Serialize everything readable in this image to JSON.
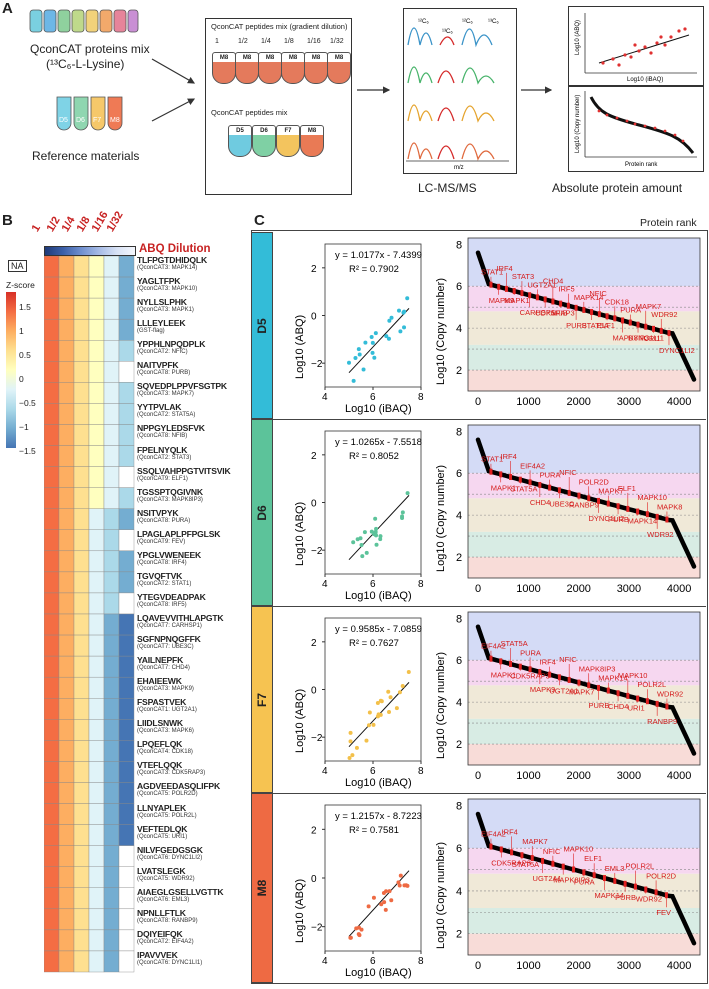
{
  "panelA": {
    "letter": "A",
    "qconcat_label": "QconCAT proteins mix",
    "qconcat_sublabel": "(¹³C₆-L-Lysine)",
    "reference_label": "Reference materials",
    "ref_tubes": [
      "D5",
      "D6",
      "F7",
      "M8"
    ],
    "gradient_title": "QconCAT peptides mix (gradient dilution)",
    "dilutions": [
      "1",
      "1/2",
      "1/4",
      "1/8",
      "1/16",
      "1/32"
    ],
    "tube_label": "M8",
    "mix_title": "QconCAT peptides mix",
    "ms_labels": [
      "¹²C₆",
      "¹³C₆"
    ],
    "mz_label": "m/z",
    "lcms_label": "LC-MS/MS",
    "abq_axis": "Log10 (ABQ)",
    "ibaq_axis": "Log10 (iBAQ)",
    "copy_axis": "Log10 (Copy number)",
    "rank_axis": "Protein rank",
    "absolute_label": "Absolute protein amount"
  },
  "panelB": {
    "letter": "B",
    "dilutions": [
      "1",
      "1/2",
      "1/4",
      "1/8",
      "1/16",
      "1/32"
    ],
    "abq_dilution": "ABQ Dilution",
    "na": "NA",
    "zscore_title": "Z-score",
    "zscore_ticks": [
      "1.5",
      "1",
      "0.5",
      "0",
      "−0.5",
      "−1",
      "−1.5"
    ],
    "rows": [
      {
        "pep": "TLFPGTDHIDQLK",
        "src": "(QconCAT3: MAPK14)"
      },
      {
        "pep": "YAGLTFPK",
        "src": "(QconCAT3: MAPK10)"
      },
      {
        "pep": "NYLLSLPHK",
        "src": "(QconCAT3: MAPK1)"
      },
      {
        "pep": "LLLEYLEEK",
        "src": "(GST-flag)"
      },
      {
        "pep": "YPPHLNPQDPLK",
        "src": "(QconCAT2: NFIC)"
      },
      {
        "pep": "NAITVPFK",
        "src": "(QconCAT8: PURB)"
      },
      {
        "pep": "SQVEDPLPPVFSGTPK",
        "src": "(QconCAT3: MAPK7)"
      },
      {
        "pep": "YYTPVLAK",
        "src": "(QconCAT2: STAT5A)"
      },
      {
        "pep": "NPPGYLEDSFVK",
        "src": "(QconCAT8: NFIB)"
      },
      {
        "pep": "FPELNYQLK",
        "src": "(QconCAT2: STAT3)"
      },
      {
        "pep": "SSQLVAHPPGTVITSVIK",
        "src": "(QconCAT9: ELF1)"
      },
      {
        "pep": "TGSSPTQGIVNK",
        "src": "(QconCAT3: MAPK8IP3)"
      },
      {
        "pep": "NSITVPYK",
        "src": "(QconCAT8: PURA)"
      },
      {
        "pep": "LPAGLAPLPFPGLSK",
        "src": "(QconCAT9: FEV)"
      },
      {
        "pep": "YPGLVWENEEK",
        "src": "(QconCAT8: IRF4)"
      },
      {
        "pep": "TGVQFTVK",
        "src": "(QconCAT2: STAT1)"
      },
      {
        "pep": "YTEGVDEADPAK",
        "src": "(QconCAT8: IRF5)"
      },
      {
        "pep": "LQAVEVVITHLAPGTK",
        "src": "(QconCAT7: CARHSP1)"
      },
      {
        "pep": "SGFNPNQGFFK",
        "src": "(QconCAT7: UBE3C)"
      },
      {
        "pep": "YAILNEPFK",
        "src": "(QconCAT7: CHD4)"
      },
      {
        "pep": "EHAIEEWK",
        "src": "(QconCAT3: MAPK9)"
      },
      {
        "pep": "FSPASTVEK",
        "src": "(QconCAT1: UGT2A1)"
      },
      {
        "pep": "LIIDLSNWK",
        "src": "(QconCAT3: MAPK6)"
      },
      {
        "pep": "LPQEFLQK",
        "src": "(QconCAT4: CDK18)"
      },
      {
        "pep": "VTEFLQQK",
        "src": "(QconCAT3: CDK5RAP3)"
      },
      {
        "pep": "AGDVEEDASQLIFPK",
        "src": "(QconCAT5: POLR2D)"
      },
      {
        "pep": "LLNYAPLEK",
        "src": "(QconCAT5: POLR2L)"
      },
      {
        "pep": "VEFTEDLQK",
        "src": "(QconCAT5: URI1)"
      },
      {
        "pep": "NILVFGEDGSGK",
        "src": "(QconCAT6: DYNC1LI2)"
      },
      {
        "pep": "LVATSLEGK",
        "src": "(QconCAT5: WDR92)"
      },
      {
        "pep": "AIAEGLGSELLVGTTK",
        "src": "(QconCAT6: EML3)"
      },
      {
        "pep": "NPNLLFTLK",
        "src": "(QconCAT8: RANBP9)"
      },
      {
        "pep": "DQIYEIFQK",
        "src": "(QconCAT2: EIF4A2)"
      },
      {
        "pep": "IPAVVVEK",
        "src": "(QconCAT6: DYNC1LI1)"
      }
    ]
  },
  "panelC": {
    "letter": "C",
    "protein_rank": "Protein rank",
    "xaxis_scatter": "Log10 (iBAQ)",
    "yaxis_scatter": "Log10 (ABQ)",
    "yaxis_rank": "Log10 (Copy number)",
    "scatter_xticks": [
      "4",
      "6",
      "8"
    ],
    "scatter_yticks": [
      "2",
      "0",
      "−2"
    ],
    "rank_yticks": [
      "8",
      "6",
      "4",
      "2"
    ],
    "rank_xticks": [
      "0",
      "1000",
      "2000",
      "3000",
      "4000"
    ],
    "samples": [
      {
        "name": "D5",
        "color": "#33bcd8",
        "dot": "#33bcd8",
        "eq": "y = 1.0177x - 7.4399",
        "r2": "R² = 0.7902",
        "labels": [
          "STAT1",
          "MAPK9",
          "IRF4",
          "MAPK1",
          "STAT3",
          "CARHSP1",
          "UGT2A1",
          "CDK5RAP3",
          "CHD4",
          "NFIB",
          "IRF5",
          "PURB",
          "MAPK14",
          "STAT5A",
          "NFIC",
          "ELF1",
          "CDK18",
          "MAPK8IP3",
          "PURA",
          "DYNC1LI1",
          "MAPK7",
          "URI1",
          "WDR92",
          "DYNC1LI2"
        ]
      },
      {
        "name": "D6",
        "color": "#5cc39a",
        "dot": "#5cc39a",
        "eq": "y = 1.0265x - 7.5518",
        "r2": "R² = 0.8052",
        "labels": [
          "STAT1",
          "MAPK1",
          "IRF4",
          "STAT5A",
          "EIF4A2",
          "CHD4",
          "PURA",
          "UBE3C",
          "NFIC",
          "RANBP9",
          "POLR2D",
          "DYNC1LI2",
          "MAPK7",
          "PURB",
          "ELF1",
          "MAPK14",
          "MAPK10",
          "WDR92",
          "MAPK8"
        ]
      },
      {
        "name": "F7",
        "color": "#f6c351",
        "dot": "#f3c04a",
        "eq": "y = 0.9585x - 7.0859",
        "r2": "R² = 0.7627",
        "labels": [
          "EIF4A2",
          "MAPK1",
          "STAT5A",
          "CDK5RAP3",
          "PURA",
          "MAPK9",
          "IRF4",
          "UGT2A1",
          "NFIC",
          "MAPK7",
          "MAPK8IP3",
          "PURB",
          "MAPK14",
          "CHD4",
          "MAPK10",
          "URI1",
          "POLR2L",
          "RANBP9",
          "WDR92"
        ]
      },
      {
        "name": "M8",
        "color": "#ee6a43",
        "dot": "#ee6a43",
        "eq": "y = 1.2157x - 8.7223",
        "r2": "R² = 0.7581",
        "labels": [
          "EIF4A2",
          "CDK5RAP3",
          "IRF4",
          "STAT5A",
          "MAPK7",
          "UGT2A1",
          "NFIC",
          "MAPK8IP3",
          "MAPK10",
          "PURA",
          "ELF1",
          "MAPK14",
          "EML3",
          "PURB",
          "POLR2L",
          "WDR92",
          "POLR2D",
          "FEV"
        ]
      }
    ]
  }
}
